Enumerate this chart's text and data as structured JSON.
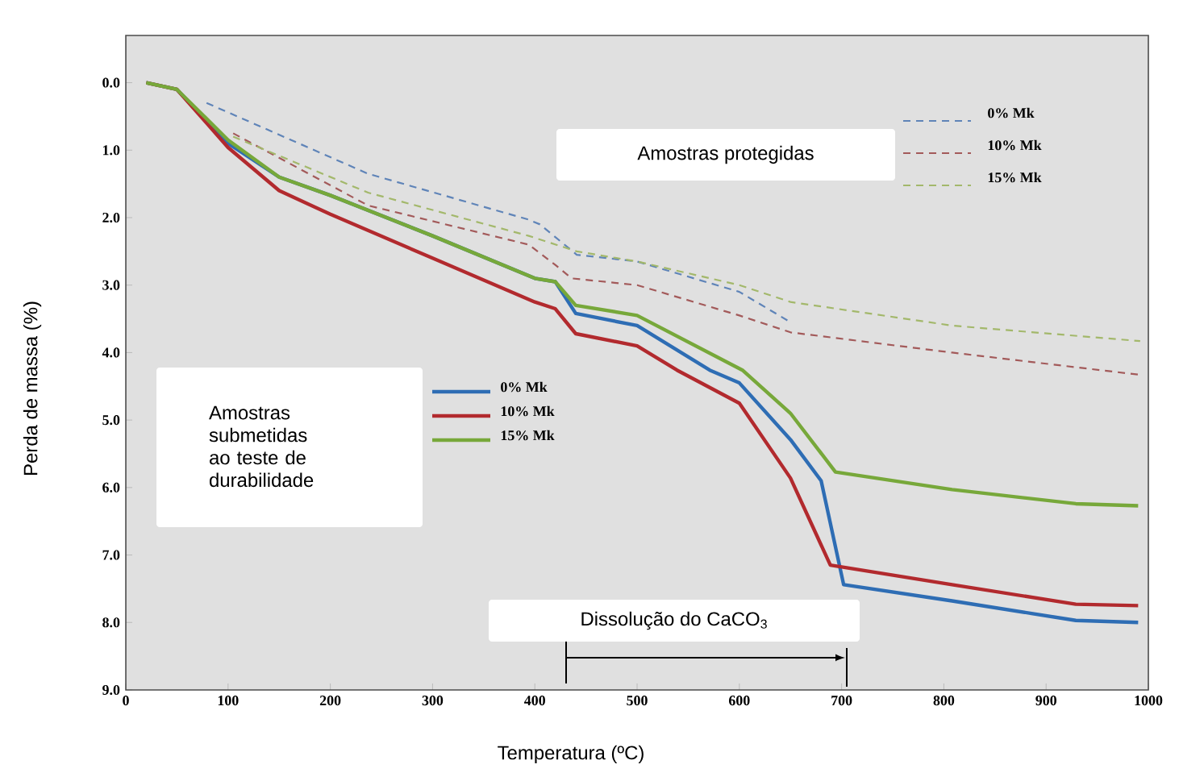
{
  "chart_data": {
    "type": "line",
    "xlabel": "Temperatura (ºC)",
    "ylabel": "Perda de massa (%)",
    "xlim": [
      0,
      1000
    ],
    "ylim": [
      9.0,
      -0.7
    ],
    "xticks": [
      0,
      100,
      200,
      300,
      400,
      500,
      600,
      700,
      800,
      900,
      1000
    ],
    "yticks": [
      {
        "value": 0,
        "label": "0.0"
      },
      {
        "value": 1,
        "label": "1.0"
      },
      {
        "value": 2,
        "label": "2.0"
      },
      {
        "value": 3,
        "label": "3.0"
      },
      {
        "value": 4,
        "label": "4.0"
      },
      {
        "value": 5,
        "label": "5.0"
      },
      {
        "value": 6,
        "label": "6.0"
      },
      {
        "value": 7,
        "label": "7.0"
      },
      {
        "value": 8,
        "label": "8.0"
      },
      {
        "value": 9,
        "label": "9.0"
      }
    ],
    "legend": "top right",
    "annotations": [
      "Amostras protegidas",
      "Amostras submetidas ao teste de durabilidade",
      "Dissolução do CaCO$_{3}$"
    ],
    "series": [
      {
        "name": "0% Mk",
        "color": "#5f84b8",
        "line_style": "dashed",
        "x": [
          79,
          237,
          394,
          405,
          441,
          500,
          600,
          650
        ],
        "values": [
          0.3,
          1.35,
          2.03,
          2.1,
          2.55,
          2.65,
          3.1,
          3.55
        ]
      },
      {
        "name": "10% Mk",
        "color": "#a35a5a",
        "line_style": "dashed",
        "x": [
          105,
          237,
          394,
          420,
          436,
          500,
          600,
          650,
          808,
          992
        ],
        "values": [
          0.75,
          1.82,
          2.4,
          2.7,
          2.9,
          3.0,
          3.45,
          3.7,
          4.0,
          4.33
        ]
      },
      {
        "name": "15% Mk",
        "color": "#a3b86b",
        "line_style": "dashed",
        "x": [
          105,
          237,
          394,
          441,
          500,
          600,
          650,
          808,
          992
        ],
        "values": [
          0.8,
          1.63,
          2.27,
          2.5,
          2.65,
          3.0,
          3.25,
          3.6,
          3.83
        ]
      },
      {
        "name": "0% Mk",
        "color": "#2e6db4",
        "line_style": "solid",
        "x": [
          20,
          50,
          100,
          150,
          200,
          300,
          400,
          420,
          440,
          500,
          571,
          600,
          650,
          680,
          702,
          808,
          929,
          990
        ],
        "values": [
          0.0,
          0.1,
          0.9,
          1.4,
          1.67,
          2.27,
          2.9,
          2.95,
          3.42,
          3.6,
          4.26,
          4.45,
          5.29,
          5.9,
          7.44,
          7.68,
          7.97,
          8.0
        ]
      },
      {
        "name": "10% Mk",
        "color": "#b22a2e",
        "line_style": "solid",
        "x": [
          20,
          50,
          100,
          150,
          200,
          300,
          400,
          420,
          440,
          500,
          539,
          600,
          650,
          689,
          808,
          929,
          990
        ],
        "values": [
          0.0,
          0.1,
          0.96,
          1.6,
          1.95,
          2.6,
          3.25,
          3.35,
          3.72,
          3.9,
          4.26,
          4.75,
          5.86,
          7.15,
          7.44,
          7.73,
          7.75
        ]
      },
      {
        "name": "15% Mk",
        "color": "#77a83a",
        "line_style": "solid",
        "x": [
          20,
          50,
          100,
          150,
          200,
          300,
          400,
          420,
          440,
          500,
          603,
          650,
          694,
          808,
          929,
          990
        ],
        "values": [
          0.0,
          0.1,
          0.85,
          1.4,
          1.67,
          2.27,
          2.9,
          2.95,
          3.3,
          3.45,
          4.26,
          4.9,
          5.77,
          6.03,
          6.24,
          6.27
        ]
      }
    ]
  }
}
